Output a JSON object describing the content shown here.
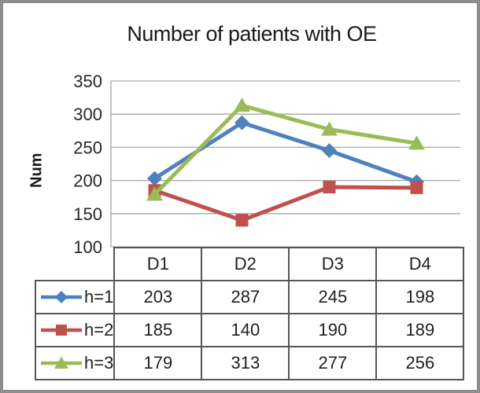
{
  "frame": {
    "border_color": "#8d8d8d",
    "background": "#ffffff"
  },
  "chart_data": {
    "type": "line",
    "title": "Number of patients with OE",
    "xlabel": "",
    "ylabel": "Num",
    "categories": [
      "D1",
      "D2",
      "D3",
      "D4"
    ],
    "series": [
      {
        "name": "h=1",
        "marker": "diamond",
        "color": "#4F81BD",
        "values": [
          203,
          287,
          245,
          198
        ]
      },
      {
        "name": "h=2",
        "marker": "square",
        "color": "#C0504D",
        "values": [
          185,
          140,
          190,
          189
        ]
      },
      {
        "name": "h=3",
        "marker": "triangle",
        "color": "#9BBB59",
        "values": [
          179,
          313,
          277,
          256
        ]
      }
    ],
    "ylim": [
      100,
      350
    ],
    "ytick_step": 50,
    "yticks": [
      350,
      300,
      250,
      200,
      150,
      100
    ],
    "grid": true,
    "gridline_color": "#a6a6a6",
    "axis_line_color": "#a6a6a6",
    "legend_position": "table-left"
  },
  "table": {
    "border_color": "#565656",
    "text_color": "#1f1f1f"
  }
}
